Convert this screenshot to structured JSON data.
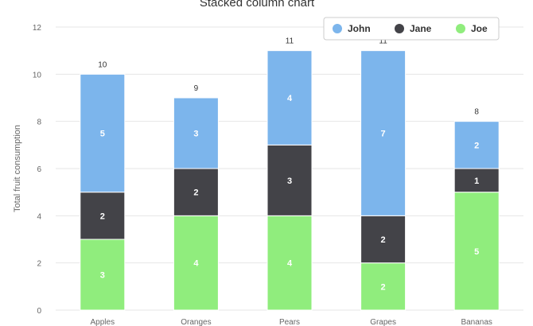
{
  "chart_data": {
    "type": "bar",
    "stacked": true,
    "title": "Stacked column chart",
    "xlabel": "",
    "ylabel": "Total fruit consumption",
    "categories": [
      "Apples",
      "Oranges",
      "Pears",
      "Grapes",
      "Bananas"
    ],
    "series": [
      {
        "name": "John",
        "color": "#7cb5ec",
        "values": [
          5,
          3,
          4,
          7,
          2
        ]
      },
      {
        "name": "Jane",
        "color": "#434348",
        "values": [
          2,
          2,
          3,
          2,
          1
        ]
      },
      {
        "name": "Joe",
        "color": "#90ed7d",
        "values": [
          3,
          4,
          4,
          2,
          5
        ]
      }
    ],
    "totals": [
      10,
      9,
      11,
      11,
      8
    ],
    "ylim": [
      0,
      12
    ],
    "yticks": [
      "0",
      "2",
      "4",
      "6",
      "8",
      "10",
      "12"
    ],
    "grid": true,
    "legend_position": "top-right"
  }
}
